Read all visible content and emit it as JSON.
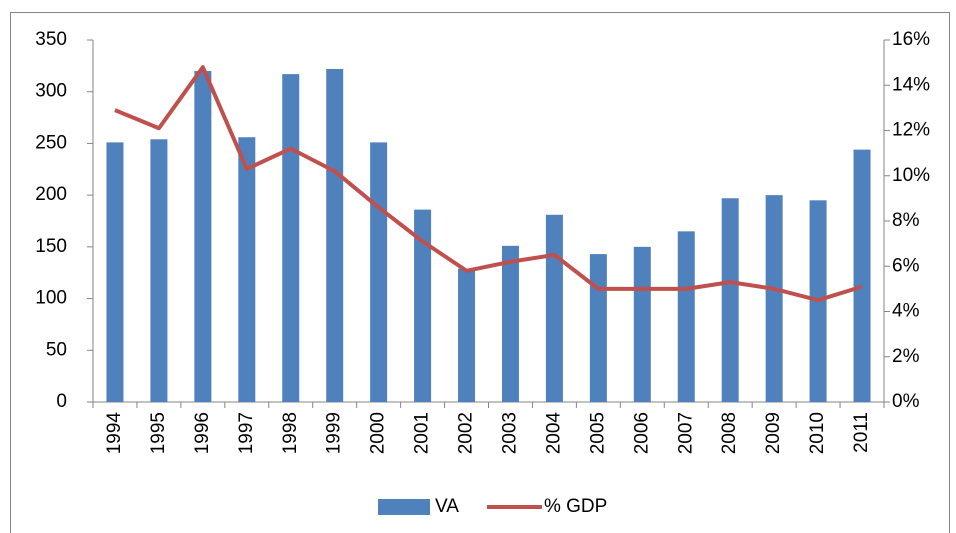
{
  "chart_data": {
    "type": "bar",
    "categories": [
      "1994",
      "1995",
      "1996",
      "1997",
      "1998",
      "1999",
      "2000",
      "2001",
      "2002",
      "2003",
      "2004",
      "2005",
      "2006",
      "2007",
      "2008",
      "2009",
      "2010",
      "2011"
    ],
    "series": [
      {
        "name": "VA",
        "type": "bar",
        "color": "#4f81bd",
        "values": [
          251,
          254,
          320,
          256,
          317,
          322,
          251,
          186,
          129,
          151,
          181,
          143,
          150,
          165,
          197,
          200,
          195,
          244
        ]
      },
      {
        "name": "% GDP",
        "type": "line",
        "axis": "y2",
        "color": "#c0504d",
        "values": [
          12.9,
          12.1,
          14.8,
          10.3,
          11.2,
          10.2,
          8.6,
          7.1,
          5.8,
          6.2,
          6.5,
          5.0,
          5.0,
          5.0,
          5.3,
          5.0,
          4.5,
          5.1
        ]
      }
    ],
    "ylim": [
      0,
      350
    ],
    "yticks": [
      0,
      50,
      100,
      150,
      200,
      250,
      300,
      350
    ],
    "y2lim": [
      0,
      16
    ],
    "y2ticks": [
      {
        "value": 0,
        "label": "0%"
      },
      {
        "value": 2,
        "label": "2%"
      },
      {
        "value": 4,
        "label": "4%"
      },
      {
        "value": 6,
        "label": "6%"
      },
      {
        "value": 8,
        "label": "8%"
      },
      {
        "value": 10,
        "label": "10%"
      },
      {
        "value": 12,
        "label": "12%"
      },
      {
        "value": 14,
        "label": "14%"
      },
      {
        "value": 16,
        "label": "16%"
      }
    ],
    "grid": false,
    "legend": "bottom"
  }
}
